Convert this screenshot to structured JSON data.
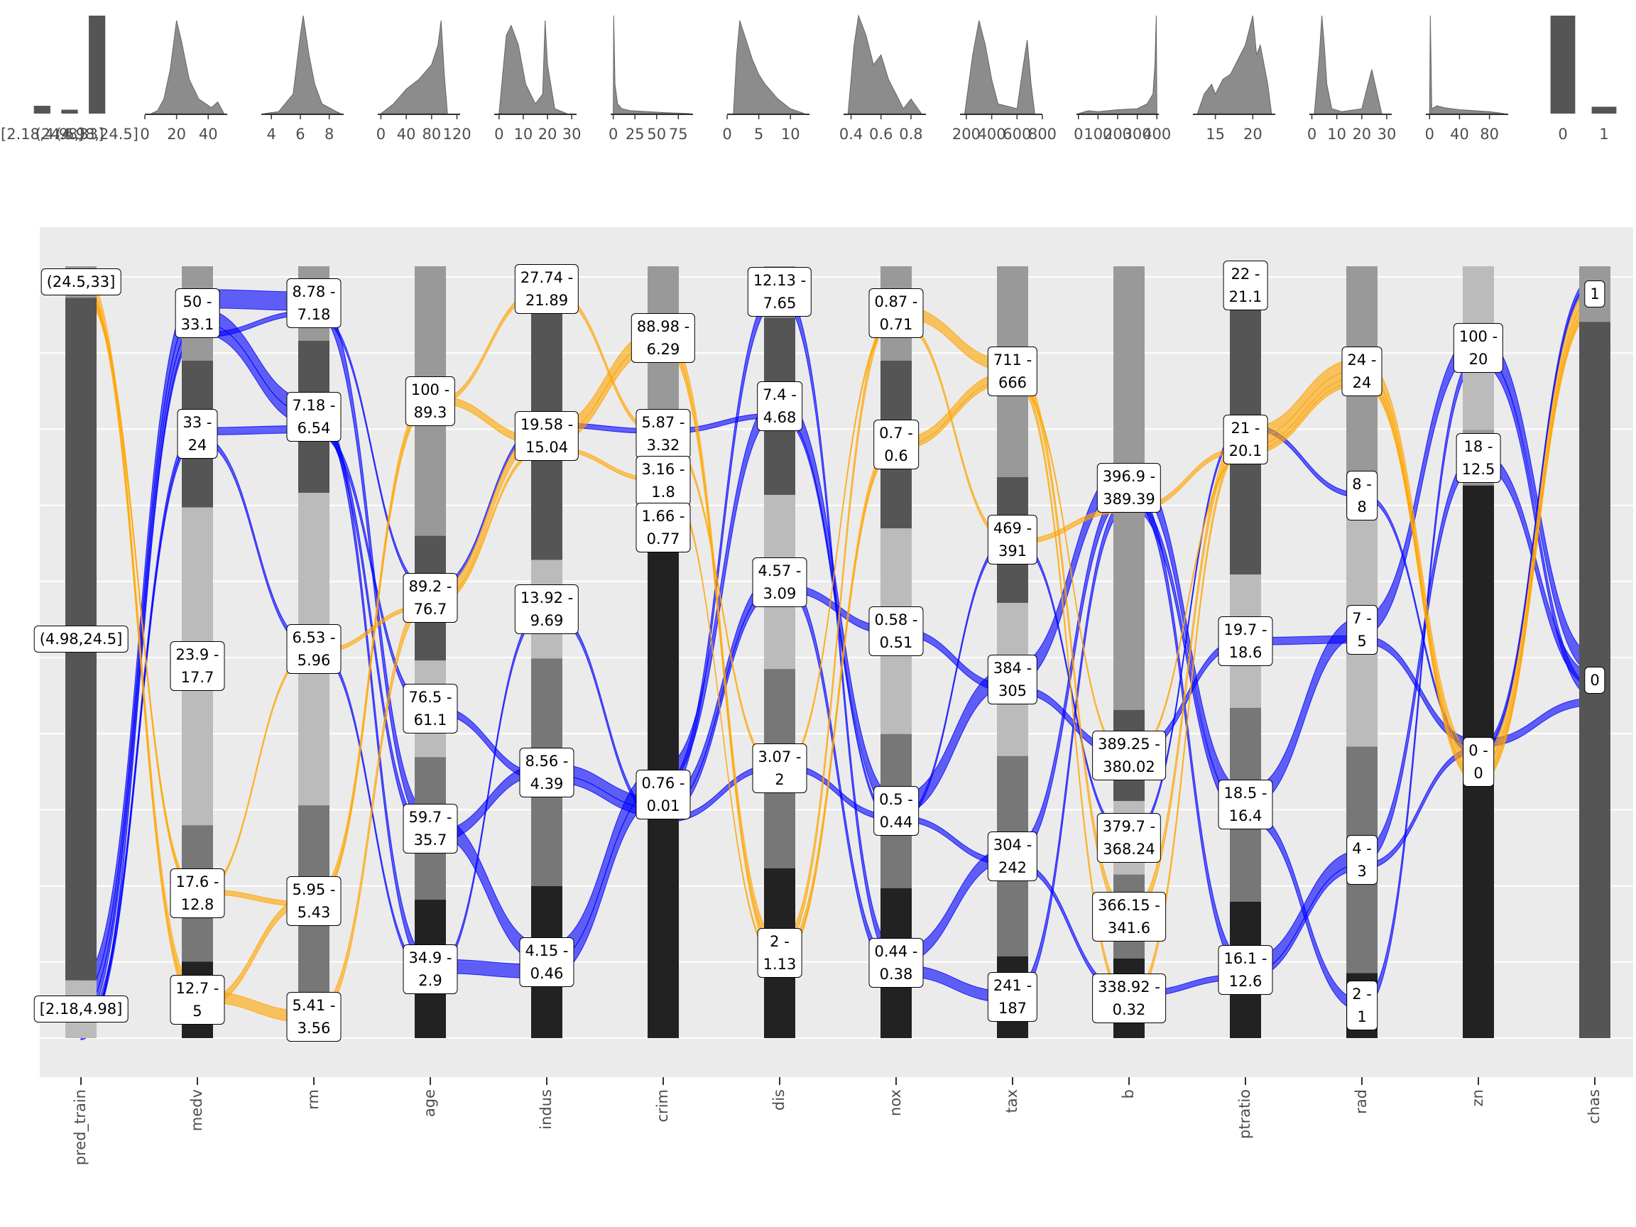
{
  "chart_data": {
    "type": "alluvial",
    "axes": [
      {
        "name": "pred_train",
        "bins": [
          {
            "label": "(24.5,33]",
            "size": 30,
            "color": "#999999"
          },
          {
            "label": "(4.98,24.5]",
            "size": 651,
            "color": "#555555"
          },
          {
            "label": "[2.18,4.98]",
            "size": 55,
            "color": "#bbbbbb"
          }
        ],
        "marginal": {
          "type": "bar",
          "categories": [
            "[2.18,4.98]",
            "(24.5,33]",
            "(4.98,24.5]"
          ],
          "values": [
            0.08,
            0.04,
            1
          ],
          "ylim": [
            0,
            1
          ]
        }
      },
      {
        "name": "medv",
        "bins": [
          {
            "label": "50 -\n33.1",
            "size": 90,
            "color": "#999999"
          },
          {
            "label": "33 -\n24",
            "size": 140,
            "color": "#555555"
          },
          {
            "label": "23.9 -\n17.7",
            "size": 303,
            "color": "#bbbbbb"
          },
          {
            "label": "17.6 -\n12.8",
            "size": 130,
            "color": "#777777"
          },
          {
            "label": "12.7 -\n5",
            "size": 73,
            "color": "#222222"
          }
        ],
        "marginal": {
          "type": "density",
          "xlim": [
            0,
            52
          ],
          "xticks": [
            0,
            20,
            40
          ],
          "x": [
            4,
            8,
            12,
            16,
            20,
            23,
            28,
            34,
            42,
            46,
            50
          ],
          "y": [
            0,
            0.03,
            0.15,
            0.45,
            0.95,
            0.75,
            0.35,
            0.15,
            0.06,
            0.12,
            0
          ],
          "ylim": [
            0,
            1
          ]
        }
      },
      {
        "name": "rm",
        "bins": [
          {
            "label": "8.78 -\n7.18",
            "size": 71,
            "color": "#999999"
          },
          {
            "label": "7.18 -\n6.54",
            "size": 145,
            "color": "#555555"
          },
          {
            "label": "6.53 -\n5.96",
            "size": 298,
            "color": "#bbbbbb"
          },
          {
            "label": "5.95 -\n5.43",
            "size": 182,
            "color": "#777777"
          },
          {
            "label": "5.41 -\n3.56",
            "size": 40,
            "color": "#222222"
          }
        ],
        "marginal": {
          "type": "density",
          "xlim": [
            3.3,
            9
          ],
          "xticks": [
            4,
            6,
            8
          ],
          "x": [
            3.5,
            4.5,
            5.5,
            6,
            6.2,
            6.6,
            7,
            7.5,
            8.5,
            8.8
          ],
          "y": [
            0,
            0.02,
            0.2,
            0.8,
            1,
            0.6,
            0.3,
            0.1,
            0.02,
            0
          ],
          "ylim": [
            0,
            1
          ]
        }
      },
      {
        "name": "age",
        "bins": [
          {
            "label": "100 -\n89.3",
            "size": 257,
            "color": "#999999"
          },
          {
            "label": "89.2 -\n76.7",
            "size": 119,
            "color": "#555555"
          },
          {
            "label": "76.5 -\n61.1",
            "size": 92,
            "color": "#bbbbbb"
          },
          {
            "label": "59.7 -\n35.7",
            "size": 136,
            "color": "#777777"
          },
          {
            "label": "34.9 -\n2.9",
            "size": 132,
            "color": "#222222"
          }
        ],
        "marginal": {
          "type": "density",
          "xlim": [
            -5,
            125
          ],
          "xticks": [
            0,
            40,
            80,
            120
          ],
          "x": [
            0,
            20,
            40,
            60,
            80,
            90,
            95,
            100,
            105
          ],
          "y": [
            0,
            0.1,
            0.25,
            0.35,
            0.5,
            0.7,
            0.95,
            0.4,
            0
          ],
          "ylim": [
            0,
            1
          ]
        }
      },
      {
        "name": "indus",
        "bins": [
          {
            "label": "27.74 -\n21.89",
            "size": 44,
            "color": "#999999"
          },
          {
            "label": "19.58 -\n15.04",
            "size": 236,
            "color": "#555555"
          },
          {
            "label": "13.92 -\n9.69",
            "size": 94,
            "color": "#bbbbbb"
          },
          {
            "label": "8.56 -\n4.39",
            "size": 217,
            "color": "#777777"
          },
          {
            "label": "4.15 -\n0.46",
            "size": 145,
            "color": "#222222"
          }
        ],
        "marginal": {
          "type": "density",
          "xlim": [
            -2,
            32
          ],
          "xticks": [
            0,
            10,
            20,
            30
          ],
          "x": [
            0,
            3,
            5,
            8,
            11,
            15,
            18,
            19,
            20,
            23,
            28
          ],
          "y": [
            0,
            0.8,
            0.9,
            0.7,
            0.3,
            0.1,
            0.2,
            0.95,
            0.5,
            0.05,
            0
          ],
          "ylim": [
            0,
            1
          ]
        }
      },
      {
        "name": "crim",
        "bins": [
          {
            "label": "88.98 -\n6.29",
            "size": 137,
            "color": "#999999"
          },
          {
            "label": "5.87 -\n3.32",
            "size": 45,
            "color": "#555555"
          },
          {
            "label": "3.16 -\n1.8",
            "size": 45,
            "color": "#bbbbbb"
          },
          {
            "label": "1.66 -\n0.77",
            "size": 44,
            "color": "#777777"
          },
          {
            "label": "0.76 -\n0.01",
            "size": 465,
            "color": "#222222"
          }
        ],
        "marginal": {
          "type": "density",
          "xlim": [
            -3,
            92
          ],
          "xticks": [
            0,
            25,
            50,
            75
          ],
          "x": [
            0,
            0.5,
            2,
            5,
            10,
            20,
            40,
            60,
            89
          ],
          "y": [
            0,
            1,
            0.3,
            0.1,
            0.05,
            0.03,
            0.02,
            0.01,
            0
          ],
          "ylim": [
            0,
            1
          ]
        }
      },
      {
        "name": "dis",
        "bins": [
          {
            "label": "12.13 -\n7.65",
            "size": 49,
            "color": "#999999"
          },
          {
            "label": "7.4 -\n4.68",
            "size": 169,
            "color": "#555555"
          },
          {
            "label": "4.57 -\n3.09",
            "size": 166,
            "color": "#bbbbbb"
          },
          {
            "label": "3.07 -\n2",
            "size": 190,
            "color": "#777777"
          },
          {
            "label": "2 -\n1.13",
            "size": 162,
            "color": "#222222"
          }
        ],
        "marginal": {
          "type": "density",
          "xlim": [
            0,
            13
          ],
          "xticks": [
            0,
            5,
            10
          ],
          "x": [
            1,
            1.5,
            2,
            3,
            4,
            5,
            6,
            8,
            10,
            12.2
          ],
          "y": [
            0,
            0.6,
            0.95,
            0.75,
            0.55,
            0.4,
            0.3,
            0.15,
            0.05,
            0
          ],
          "ylim": [
            0,
            1
          ]
        }
      },
      {
        "name": "nox",
        "bins": [
          {
            "label": "0.87 -\n0.71",
            "size": 90,
            "color": "#999999"
          },
          {
            "label": "0.7 -\n0.6",
            "size": 160,
            "color": "#555555"
          },
          {
            "label": "0.58 -\n0.51",
            "size": 196,
            "color": "#bbbbbb"
          },
          {
            "label": "0.5 -\n0.44",
            "size": 147,
            "color": "#777777"
          },
          {
            "label": "0.44 -\n0.38",
            "size": 143,
            "color": "#222222"
          }
        ],
        "marginal": {
          "type": "density",
          "xlim": [
            0.35,
            0.9
          ],
          "xticks": [
            0.4,
            0.6,
            0.8
          ],
          "x": [
            0.38,
            0.42,
            0.45,
            0.5,
            0.55,
            0.6,
            0.65,
            0.7,
            0.75,
            0.8,
            0.87
          ],
          "y": [
            0,
            0.7,
            1,
            0.8,
            0.5,
            0.6,
            0.35,
            0.2,
            0.05,
            0.15,
            0
          ],
          "ylim": [
            0,
            1
          ]
        }
      },
      {
        "name": "tax",
        "bins": [
          {
            "label": "711 -\n666",
            "size": 201,
            "color": "#999999"
          },
          {
            "label": "469 -\n391",
            "size": 120,
            "color": "#555555"
          },
          {
            "label": "384 -\n305",
            "size": 146,
            "color": "#bbbbbb"
          },
          {
            "label": "304 -\n242",
            "size": 191,
            "color": "#777777"
          },
          {
            "label": "241 -\n187",
            "size": 78,
            "color": "#222222"
          }
        ],
        "marginal": {
          "type": "density",
          "xlim": [
            150,
            800
          ],
          "xticks": [
            200,
            400,
            600,
            800
          ],
          "x": [
            187,
            250,
            300,
            350,
            400,
            450,
            600,
            650,
            680,
            711,
            740
          ],
          "y": [
            0,
            0.6,
            0.95,
            0.7,
            0.35,
            0.1,
            0.05,
            0.5,
            0.75,
            0.3,
            0
          ],
          "ylim": [
            0,
            1
          ]
        }
      },
      {
        "name": "b",
        "bins": [
          {
            "label": "396.9 -\n389.39",
            "size": 423,
            "color": "#999999"
          },
          {
            "label": "389.25 -\n380.02",
            "size": 87,
            "color": "#555555"
          },
          {
            "label": "379.7 -\n368.24",
            "size": 70,
            "color": "#bbbbbb"
          },
          {
            "label": "366.15 -\n341.6",
            "size": 80,
            "color": "#777777"
          },
          {
            "label": "338.92 -\n0.32",
            "size": 76,
            "color": "#222222"
          }
        ],
        "marginal": {
          "type": "density",
          "xlim": [
            -10,
            410
          ],
          "xticks": [
            0,
            100,
            200,
            300,
            400
          ],
          "x": [
            0,
            50,
            100,
            200,
            300,
            350,
            380,
            390,
            397,
            400
          ],
          "y": [
            0,
            0.03,
            0.02,
            0.04,
            0.05,
            0.1,
            0.2,
            0.5,
            1,
            0
          ],
          "ylim": [
            0,
            1
          ]
        }
      },
      {
        "name": "ptratio",
        "bins": [
          {
            "label": "22 -\n21.1",
            "size": 36,
            "color": "#999999"
          },
          {
            "label": "21 -\n20.1",
            "size": 258,
            "color": "#555555"
          },
          {
            "label": "19.7 -\n18.6",
            "size": 127,
            "color": "#bbbbbb"
          },
          {
            "label": "18.5 -\n16.4",
            "size": 185,
            "color": "#777777"
          },
          {
            "label": "16.1 -\n12.6",
            "size": 130,
            "color": "#222222"
          }
        ],
        "marginal": {
          "type": "density",
          "xlim": [
            12,
            23
          ],
          "xticks": [
            15,
            20
          ],
          "x": [
            12.6,
            13.5,
            14.5,
            15,
            16,
            17,
            18,
            19,
            20,
            20.5,
            21,
            22,
            22.5
          ],
          "y": [
            0,
            0.2,
            0.3,
            0.2,
            0.35,
            0.4,
            0.55,
            0.7,
            1,
            0.6,
            0.7,
            0.3,
            0
          ],
          "ylim": [
            0,
            1
          ]
        }
      },
      {
        "name": "rad",
        "bins": [
          {
            "label": "24 -\n24",
            "size": 201,
            "color": "#999999"
          },
          {
            "label": "8 -\n8",
            "size": 35,
            "color": "#555555"
          },
          {
            "label": "7 -\n5",
            "size": 222,
            "color": "#bbbbbb"
          },
          {
            "label": "4 -\n3",
            "size": 216,
            "color": "#777777"
          },
          {
            "label": "2 -\n1",
            "size": 62,
            "color": "#222222"
          }
        ],
        "marginal": {
          "type": "density",
          "xlim": [
            -1,
            32
          ],
          "xticks": [
            0,
            10,
            20,
            30
          ],
          "x": [
            1,
            3,
            4,
            5,
            6,
            8,
            12,
            20,
            24,
            28
          ],
          "y": [
            0,
            0.6,
            1,
            0.7,
            0.3,
            0.05,
            0.02,
            0.05,
            0.45,
            0
          ],
          "ylim": [
            0,
            1
          ]
        }
      },
      {
        "name": "zn",
        "bins": [
          {
            "label": "100 -\n20",
            "size": 156,
            "color": "#bbbbbb"
          },
          {
            "label": "18 -\n12.5",
            "size": 53,
            "color": "#999999"
          },
          {
            "label": "0 -\n0",
            "size": 527,
            "color": "#222222"
          }
        ],
        "marginal": {
          "type": "density",
          "xlim": [
            -5,
            105
          ],
          "xticks": [
            0,
            40,
            80
          ],
          "x": [
            0,
            1,
            3,
            10,
            20,
            30,
            40,
            60,
            80,
            100
          ],
          "y": [
            0,
            1,
            0.05,
            0.08,
            0.06,
            0.05,
            0.04,
            0.03,
            0.02,
            0
          ],
          "ylim": [
            0,
            1
          ]
        }
      },
      {
        "name": "chas",
        "bins": [
          {
            "label": "1",
            "size": 53,
            "color": "#999999"
          },
          {
            "label": "0",
            "size": 683,
            "color": "#555555"
          }
        ],
        "marginal": {
          "type": "bar",
          "categories": [
            "0",
            "1"
          ],
          "values": [
            1,
            0.07
          ],
          "ylim": [
            0,
            1
          ]
        }
      }
    ],
    "flows": [
      {
        "color": "#0000ff",
        "weight": 20,
        "path": [
          2,
          0,
          0,
          3,
          4,
          4,
          1,
          3,
          2,
          0,
          3,
          2,
          0,
          1
        ]
      },
      {
        "color": "#0000ff",
        "weight": 15,
        "path": [
          2,
          0,
          1,
          4,
          4,
          4,
          0,
          4,
          3,
          0,
          4,
          3,
          1,
          1
        ]
      },
      {
        "color": "#0000ff",
        "weight": 12,
        "path": [
          2,
          0,
          1,
          3,
          3,
          4,
          2,
          4,
          4,
          0,
          3,
          4,
          0,
          1
        ]
      },
      {
        "color": "#0000ff",
        "weight": 8,
        "path": [
          2,
          1,
          1,
          2,
          3,
          4,
          2,
          2,
          2,
          1,
          2,
          2,
          2,
          1
        ]
      },
      {
        "color": "#0000ff",
        "weight": 6,
        "path": [
          2,
          1,
          2,
          4,
          2,
          4,
          3,
          3,
          3,
          4,
          4,
          3,
          2,
          0
        ]
      },
      {
        "color": "#0000ff",
        "weight": 5,
        "path": [
          2,
          0,
          0,
          1,
          1,
          1,
          1,
          3,
          1,
          2,
          1,
          1,
          2,
          0
        ]
      },
      {
        "color": "#ffa500",
        "weight": 12,
        "path": [
          0,
          4,
          4,
          1,
          1,
          0,
          4,
          0,
          0,
          3,
          1,
          0,
          2,
          0
        ]
      },
      {
        "color": "#ffa500",
        "weight": 8,
        "path": [
          0,
          4,
          3,
          0,
          1,
          0,
          4,
          1,
          0,
          4,
          1,
          0,
          2,
          0
        ]
      },
      {
        "color": "#ffa500",
        "weight": 5,
        "path": [
          0,
          3,
          3,
          0,
          0,
          1,
          3,
          0,
          1,
          0,
          1,
          0,
          2,
          0
        ]
      },
      {
        "color": "#ffa500",
        "weight": 4,
        "path": [
          0,
          3,
          2,
          1,
          1,
          2,
          4,
          1,
          0,
          1,
          1,
          0,
          2,
          0
        ]
      }
    ]
  }
}
